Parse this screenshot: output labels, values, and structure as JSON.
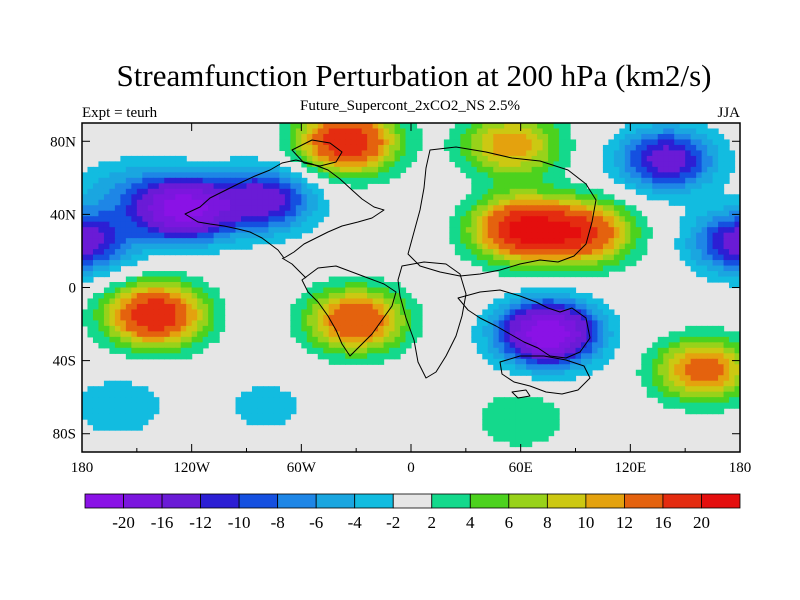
{
  "chart_data": {
    "type": "heatmap",
    "title": "Streamfunction Perturbation at 200 hPa (km2/s)",
    "subtitle_left": "Expt = teurh",
    "subtitle_center": "Future_Supercont_2xCO2_NS 2.5%",
    "subtitle_right": "JJA",
    "x_ticks": [
      "180",
      "120W",
      "60W",
      "0",
      "60E",
      "120E",
      "180"
    ],
    "x_tick_values": [
      -180,
      -120,
      -60,
      0,
      60,
      120,
      180
    ],
    "y_ticks": [
      "80N",
      "40N",
      "0",
      "40S",
      "80S"
    ],
    "y_tick_values": [
      80,
      40,
      0,
      -40,
      -80
    ],
    "xlim": [
      -180,
      180
    ],
    "ylim": [
      -90,
      90
    ],
    "colorbar": {
      "levels": [
        "-20",
        "-16",
        "-12",
        "-10",
        "-8",
        "-6",
        "-4",
        "-2",
        "2",
        "4",
        "6",
        "8",
        "10",
        "12",
        "16",
        "20"
      ],
      "colors": [
        "#8a12e6",
        "#7b16de",
        "#6a1bd6",
        "#2c1fd4",
        "#1550e0",
        "#1e86e6",
        "#1aa6e0",
        "#12bce0",
        "#e6e6e6",
        "#14d98c",
        "#4cd21e",
        "#98d21a",
        "#ccc812",
        "#e4a20e",
        "#e4620e",
        "#e42c10",
        "#e40e0e"
      ]
    },
    "anomalies": [
      {
        "lon": -125,
        "lat": 43,
        "value": -22
      },
      {
        "lon": -160,
        "lat": 55,
        "value": -4
      },
      {
        "lon": -80,
        "lat": 48,
        "value": -14
      },
      {
        "lon": -35,
        "lat": 80,
        "value": 20
      },
      {
        "lon": 55,
        "lat": 78,
        "value": 12
      },
      {
        "lon": 60,
        "lat": 32,
        "value": 20
      },
      {
        "lon": 95,
        "lat": 30,
        "value": 16
      },
      {
        "lon": 140,
        "lat": 70,
        "value": -14
      },
      {
        "lon": 180,
        "lat": 25,
        "value": -14
      },
      {
        "lon": -180,
        "lat": 25,
        "value": -14
      },
      {
        "lon": -140,
        "lat": -15,
        "value": 20
      },
      {
        "lon": -30,
        "lat": -18,
        "value": 16
      },
      {
        "lon": 75,
        "lat": -25,
        "value": -24
      },
      {
        "lon": 160,
        "lat": -45,
        "value": 14
      },
      {
        "lon": -160,
        "lat": -65,
        "value": -4
      },
      {
        "lon": 60,
        "lat": -72,
        "value": 4
      },
      {
        "lon": -80,
        "lat": -65,
        "value": -3
      }
    ]
  }
}
